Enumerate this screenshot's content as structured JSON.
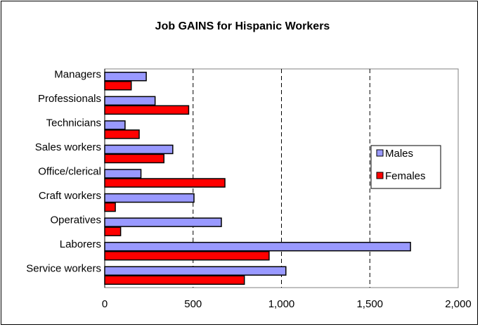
{
  "chart_data": {
    "type": "bar",
    "orientation": "horizontal",
    "title": "Job GAINS for Hispanic Workers",
    "categories": [
      "Managers",
      "Professionals",
      "Technicians",
      "Sales workers",
      "Office/clerical",
      "Craft workers",
      "Operatives",
      "Laborers",
      "Service workers"
    ],
    "series": [
      {
        "name": "Males",
        "color": "#9999ff",
        "values": [
          235,
          285,
          115,
          385,
          205,
          505,
          660,
          1730,
          1025
        ]
      },
      {
        "name": "Females",
        "color": "#ff0000",
        "values": [
          150,
          475,
          195,
          335,
          680,
          60,
          90,
          930,
          790
        ]
      }
    ],
    "xlim": [
      0,
      2000
    ],
    "x_ticks": [
      0,
      500,
      1000,
      1500,
      2000
    ],
    "x_tick_labels": [
      "0",
      "500",
      "1,000",
      "1,500",
      "2,000"
    ],
    "gridlines": "vertical dashed",
    "legend_position": "right"
  }
}
